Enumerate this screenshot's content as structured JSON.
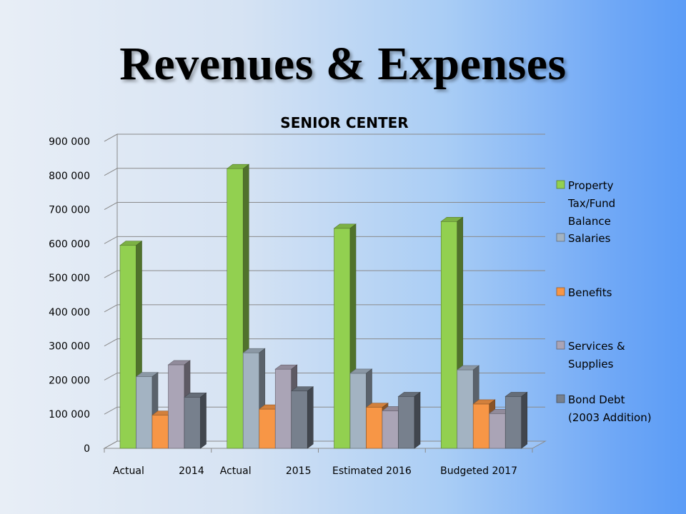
{
  "slide": {
    "title": "Revenues & Expenses"
  },
  "chart_data": {
    "type": "bar",
    "title": "SENIOR CENTER",
    "categories": [
      "Actual 2014",
      "Actual 2015",
      "Estimated 2016",
      "Budgeted 2017"
    ],
    "category_labels": [
      [
        "Actual",
        "2014"
      ],
      [
        "Actual",
        "2015"
      ],
      [
        "Estimated 2016"
      ],
      [
        "Budgeted 2017"
      ]
    ],
    "series": [
      {
        "name": "Property Tax/Fund Balance",
        "legend_lines": [
          "Property",
          "Tax/Fund",
          "Balance"
        ],
        "color": "#92d050",
        "values": [
          595000,
          820000,
          645000,
          665000
        ]
      },
      {
        "name": "Salaries",
        "legend_lines": [
          "Salaries"
        ],
        "color": "#a3b3c2",
        "values": [
          210000,
          280000,
          220000,
          230000
        ]
      },
      {
        "name": "Benefits",
        "legend_lines": [
          "Benefits"
        ],
        "color": "#f79646",
        "values": [
          97000,
          115000,
          120000,
          130000
        ]
      },
      {
        "name": "Services & Supplies",
        "legend_lines": [
          "Services &",
          "Supplies"
        ],
        "color": "#aaa4b6",
        "values": [
          245000,
          232000,
          110000,
          102000
        ]
      },
      {
        "name": "Bond Debt (2003 Addition)",
        "legend_lines": [
          "Bond Debt",
          "(2003 Addition)"
        ],
        "color": "#77808d",
        "values": [
          150000,
          168000,
          152000,
          152000
        ]
      }
    ],
    "ylim": [
      0,
      900000
    ],
    "yticks": [
      0,
      100000,
      200000,
      300000,
      400000,
      500000,
      600000,
      700000,
      800000,
      900000
    ],
    "ytick_labels": [
      "0",
      "100 000",
      "200 000",
      "300 000",
      "400 000",
      "500 000",
      "600 000",
      "700 000",
      "800 000",
      "900 000"
    ],
    "grid": true,
    "legend_position": "right",
    "xlabel": "",
    "ylabel": ""
  }
}
